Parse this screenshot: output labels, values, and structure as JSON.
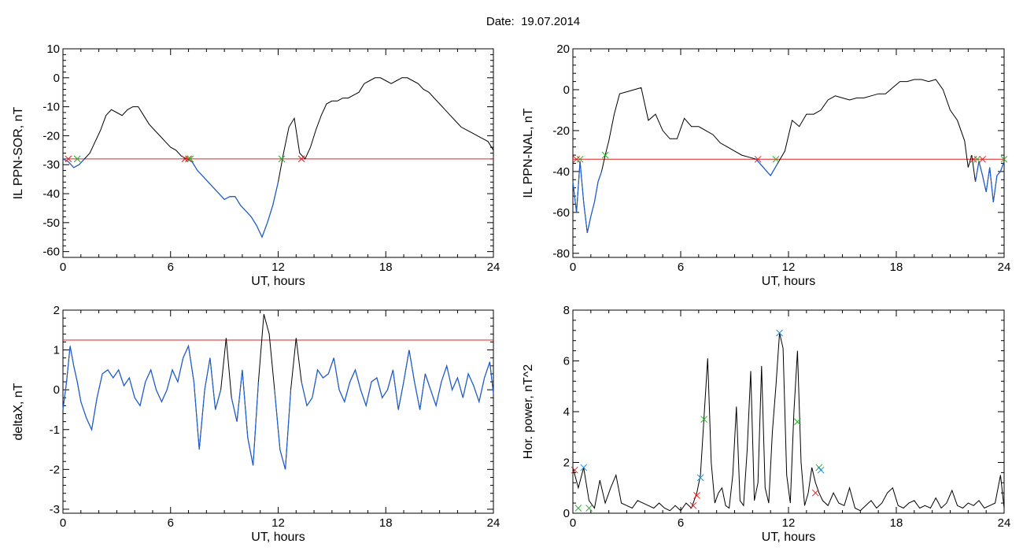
{
  "header": {
    "date_label": "Date:",
    "date_value": "19.07.2014"
  },
  "colors": {
    "trace": "#000000",
    "highlight": "#1f5fd0",
    "threshold": "#e02020",
    "marker_red": "#e02020",
    "marker_green": "#20b020",
    "marker_blue": "#2090e0"
  },
  "chart_data": [
    {
      "id": "il-ppn-sor",
      "type": "line",
      "title": "",
      "xlabel": "UT, hours",
      "ylabel": "IL PPN-SOR, nT",
      "xlim": [
        0,
        24
      ],
      "ylim": [
        -62,
        10
      ],
      "xticks": [
        0,
        6,
        12,
        18,
        24
      ],
      "yticks": [
        10,
        0,
        -10,
        -20,
        -30,
        -40,
        -50,
        -60
      ],
      "threshold": -28,
      "series": [
        {
          "x": [
            0,
            0.3,
            0.6,
            0.9,
            1.2,
            1.5,
            1.8,
            2.1,
            2.4,
            2.7,
            3.0,
            3.3,
            3.6,
            3.9,
            4.2,
            4.5,
            4.8,
            5.1,
            5.4,
            5.7,
            6.0,
            6.3,
            6.6,
            6.9,
            7.2,
            7.5,
            7.8,
            8.1,
            8.4,
            8.7,
            9.0,
            9.3,
            9.6,
            9.9,
            10.2,
            10.5,
            10.8,
            11.1,
            11.4,
            11.7,
            12.0,
            12.3,
            12.6,
            12.9,
            13.2,
            13.5,
            13.8,
            14.1,
            14.4,
            14.7,
            15.0,
            15.3,
            15.6,
            15.9,
            16.2,
            16.5,
            16.8,
            17.1,
            17.4,
            17.7,
            18.0,
            18.3,
            18.6,
            18.9,
            19.2,
            19.5,
            19.8,
            20.1,
            20.4,
            20.7,
            21.0,
            21.3,
            21.6,
            21.9,
            22.2,
            22.5,
            22.8,
            23.1,
            23.4,
            23.7,
            24.0
          ],
          "values": [
            -28,
            -29,
            -31,
            -30,
            -28,
            -26,
            -22,
            -18,
            -13,
            -11,
            -12,
            -13,
            -11,
            -10,
            -10,
            -13,
            -16,
            -18,
            -20,
            -22,
            -24,
            -25,
            -27,
            -28,
            -29,
            -32,
            -34,
            -36,
            -38,
            -40,
            -42,
            -41,
            -41,
            -44,
            -46,
            -48,
            -51,
            -55,
            -50,
            -44,
            -36,
            -26,
            -17,
            -14,
            -26,
            -28,
            -24,
            -18,
            -13,
            -9,
            -8,
            -8,
            -7,
            -7,
            -6,
            -5,
            -2,
            -1,
            0,
            0,
            -1,
            -2,
            -1,
            0,
            0,
            -1,
            -2,
            -4,
            -5,
            -7,
            -9,
            -11,
            -13,
            -15,
            -17,
            -18,
            -19,
            -20,
            -21,
            -22,
            -25
          ]
        }
      ],
      "markers_red": [
        [
          0.3,
          -28
        ],
        [
          6.8,
          -28
        ],
        [
          7.0,
          -28
        ],
        [
          13.3,
          -28
        ]
      ],
      "markers_green": [
        [
          0.8,
          -28
        ],
        [
          7.1,
          -28
        ],
        [
          12.2,
          -28
        ]
      ],
      "markers_blue": []
    },
    {
      "id": "il-ppn-nal",
      "type": "line",
      "title": "",
      "xlabel": "UT, hours",
      "ylabel": "IL PPN-NAL, nT",
      "xlim": [
        0,
        24
      ],
      "ylim": [
        -82,
        20
      ],
      "xticks": [
        0,
        6,
        12,
        18,
        24
      ],
      "yticks": [
        20,
        0,
        -20,
        -40,
        -60,
        -80
      ],
      "threshold": -34,
      "series": [
        {
          "x": [
            0,
            0.2,
            0.4,
            0.6,
            0.8,
            1.0,
            1.2,
            1.4,
            1.6,
            1.8,
            2.0,
            2.3,
            2.6,
            3.0,
            3.4,
            3.8,
            4.2,
            4.6,
            5.0,
            5.4,
            5.8,
            6.2,
            6.6,
            7.0,
            7.4,
            7.8,
            8.2,
            8.6,
            9.0,
            9.4,
            9.8,
            10.2,
            10.6,
            11.0,
            11.4,
            11.8,
            12.2,
            12.6,
            13.0,
            13.4,
            13.8,
            14.2,
            14.6,
            15.0,
            15.4,
            15.8,
            16.2,
            16.6,
            17.0,
            17.4,
            17.8,
            18.2,
            18.6,
            19.0,
            19.4,
            19.8,
            20.2,
            20.6,
            21.0,
            21.4,
            21.8,
            22.0,
            22.2,
            22.4,
            22.6,
            22.8,
            23.0,
            23.2,
            23.4,
            23.6,
            23.8,
            24.0
          ],
          "values": [
            -45,
            -60,
            -35,
            -55,
            -70,
            -62,
            -55,
            -45,
            -40,
            -32,
            -25,
            -12,
            -2,
            -1,
            0,
            1,
            -15,
            -12,
            -20,
            -24,
            -24,
            -14,
            -18,
            -18,
            -20,
            -22,
            -26,
            -28,
            -30,
            -32,
            -33,
            -34,
            -38,
            -42,
            -36,
            -30,
            -15,
            -18,
            -12,
            -12,
            -10,
            -5,
            -3,
            -4,
            -5,
            -4,
            -4,
            -3,
            -2,
            -2,
            1,
            4,
            4,
            5,
            5,
            4,
            5,
            0,
            -10,
            -15,
            -25,
            -38,
            -32,
            -45,
            -35,
            -42,
            -50,
            -38,
            -55,
            -42,
            -40,
            -35
          ]
        }
      ],
      "markers_red": [
        [
          0.2,
          -34
        ],
        [
          10.3,
          -34
        ],
        [
          22.3,
          -34
        ],
        [
          22.8,
          -34
        ]
      ],
      "markers_green": [
        [
          0.4,
          -34
        ],
        [
          1.8,
          -32
        ],
        [
          11.3,
          -34
        ],
        [
          22.5,
          -34
        ],
        [
          24.0,
          -34
        ]
      ],
      "markers_blue": []
    },
    {
      "id": "deltax",
      "type": "line",
      "title": "",
      "xlabel": "UT, hours",
      "ylabel": "deltaX, nT",
      "xlim": [
        0,
        24
      ],
      "ylim": [
        -3.1,
        2
      ],
      "xticks": [
        0,
        6,
        12,
        18,
        24
      ],
      "yticks": [
        2,
        1,
        0,
        -1,
        -2,
        -3
      ],
      "threshold": 1.25,
      "series": [
        {
          "x": [
            0,
            0.2,
            0.4,
            0.6,
            0.8,
            1.0,
            1.3,
            1.6,
            1.9,
            2.2,
            2.5,
            2.8,
            3.1,
            3.4,
            3.7,
            4.0,
            4.3,
            4.6,
            4.9,
            5.2,
            5.5,
            5.8,
            6.1,
            6.4,
            6.7,
            7.0,
            7.3,
            7.6,
            7.9,
            8.2,
            8.5,
            8.8,
            9.1,
            9.4,
            9.7,
            10.0,
            10.3,
            10.6,
            10.9,
            11.2,
            11.5,
            11.8,
            12.1,
            12.4,
            12.7,
            13.0,
            13.3,
            13.6,
            13.9,
            14.2,
            14.5,
            14.8,
            15.1,
            15.4,
            15.7,
            16.0,
            16.3,
            16.6,
            16.9,
            17.2,
            17.5,
            17.8,
            18.1,
            18.4,
            18.7,
            19.0,
            19.3,
            19.6,
            19.9,
            20.2,
            20.5,
            20.8,
            21.1,
            21.4,
            21.7,
            22.0,
            22.3,
            22.6,
            22.9,
            23.2,
            23.5,
            23.8,
            24.0
          ],
          "values": [
            -0.5,
            0.2,
            1.1,
            0.6,
            0.2,
            -0.3,
            -0.7,
            -1.0,
            -0.2,
            0.4,
            0.5,
            0.3,
            0.5,
            0.1,
            0.3,
            -0.2,
            -0.4,
            0.2,
            0.5,
            0.0,
            -0.3,
            0.0,
            0.5,
            0.2,
            0.8,
            1.1,
            0.2,
            -1.5,
            0.0,
            0.8,
            -0.5,
            0.0,
            1.3,
            -0.2,
            -0.8,
            0.5,
            -1.2,
            -1.9,
            0.2,
            1.9,
            1.4,
            0.0,
            -1.5,
            -2.0,
            0.0,
            1.3,
            0.2,
            -0.4,
            -0.2,
            0.5,
            0.3,
            0.4,
            0.8,
            0.0,
            -0.3,
            0.2,
            0.5,
            0.0,
            -0.4,
            0.2,
            0.3,
            -0.2,
            0.0,
            0.5,
            -0.5,
            0.2,
            1.0,
            0.2,
            -0.5,
            0.4,
            0.0,
            -0.4,
            0.2,
            0.6,
            0.0,
            0.3,
            -0.2,
            0.4,
            0.1,
            -0.3,
            0.3,
            0.7,
            -0.1
          ]
        }
      ],
      "markers_red": [],
      "markers_green": [],
      "markers_blue": []
    },
    {
      "id": "hor-power",
      "type": "line",
      "title": "",
      "xlabel": "UT, hours",
      "ylabel": "Hor. power, nT^2",
      "xlim": [
        0,
        24
      ],
      "ylim": [
        0,
        8
      ],
      "xticks": [
        0,
        6,
        12,
        18,
        24
      ],
      "yticks": [
        0,
        2,
        4,
        6,
        8
      ],
      "threshold": null,
      "series": [
        {
          "x": [
            0,
            0.3,
            0.6,
            0.9,
            1.2,
            1.5,
            1.8,
            2.1,
            2.4,
            2.7,
            3.0,
            3.3,
            3.6,
            3.9,
            4.2,
            4.5,
            4.8,
            5.1,
            5.4,
            5.7,
            6.0,
            6.3,
            6.6,
            6.9,
            7.1,
            7.3,
            7.5,
            7.7,
            7.9,
            8.1,
            8.3,
            8.5,
            8.7,
            8.9,
            9.1,
            9.3,
            9.5,
            9.7,
            9.9,
            10.1,
            10.3,
            10.5,
            10.7,
            10.9,
            11.1,
            11.3,
            11.5,
            11.7,
            11.9,
            12.1,
            12.3,
            12.5,
            12.7,
            12.9,
            13.1,
            13.3,
            13.5,
            13.7,
            13.9,
            14.2,
            14.5,
            14.8,
            15.1,
            15.4,
            15.7,
            16.0,
            16.3,
            16.6,
            16.9,
            17.2,
            17.5,
            17.8,
            18.1,
            18.4,
            18.7,
            19.0,
            19.3,
            19.6,
            19.9,
            20.2,
            20.5,
            20.8,
            21.1,
            21.4,
            21.7,
            22.0,
            22.3,
            22.6,
            22.9,
            23.2,
            23.5,
            23.8,
            24.0
          ],
          "values": [
            1.8,
            1.0,
            1.8,
            0.5,
            0.2,
            1.3,
            0.4,
            1.0,
            1.5,
            0.4,
            0.3,
            0.2,
            0.5,
            0.4,
            0.3,
            0.2,
            0.4,
            0.2,
            0.1,
            0.3,
            0.1,
            0.4,
            0.2,
            0.8,
            1.5,
            3.8,
            6.1,
            2.0,
            0.4,
            0.8,
            1.0,
            0.3,
            0.2,
            1.5,
            4.2,
            0.5,
            0.3,
            2.5,
            5.6,
            0.5,
            1.2,
            5.8,
            1.0,
            0.4,
            3.2,
            5.0,
            7.1,
            6.5,
            1.5,
            0.4,
            4.0,
            6.4,
            2.0,
            0.3,
            0.8,
            1.8,
            1.2,
            0.8,
            0.5,
            0.3,
            0.8,
            0.4,
            0.3,
            1.0,
            0.2,
            0.1,
            0.3,
            0.5,
            0.2,
            0.4,
            0.8,
            1.0,
            0.3,
            0.2,
            0.4,
            0.5,
            0.2,
            0.3,
            0.2,
            0.6,
            0.2,
            0.4,
            0.9,
            0.3,
            0.2,
            0.4,
            0.3,
            0.5,
            0.2,
            0.3,
            0.4,
            1.5,
            0.2
          ]
        }
      ],
      "markers_red": [
        [
          0.1,
          1.7
        ],
        [
          6.7,
          0.3
        ],
        [
          6.9,
          0.7
        ],
        [
          13.5,
          0.8
        ]
      ],
      "markers_green": [
        [
          0.3,
          0.2
        ],
        [
          0.9,
          0.2
        ],
        [
          7.3,
          3.7
        ],
        [
          12.5,
          3.6
        ],
        [
          13.7,
          1.8
        ]
      ],
      "markers_blue": [
        [
          0.6,
          1.8
        ],
        [
          7.1,
          1.4
        ],
        [
          11.5,
          7.1
        ],
        [
          13.8,
          1.7
        ]
      ]
    }
  ]
}
